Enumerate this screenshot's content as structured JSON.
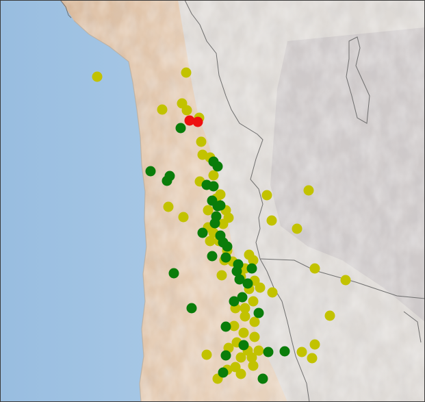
{
  "map": {
    "type": "occurrence-map",
    "colors": {
      "ocean": "#a9c9e6",
      "ocean_coast": "#c7dcef",
      "desert": "#e2c7ac",
      "highland": "#dcdcdc",
      "altiplano": "#d1cccc",
      "border": "#6e6e6e",
      "marker_green": "#0a7d0a",
      "marker_yellow": "#c2c200",
      "marker_red": "#ee1010"
    },
    "marker_categories": [
      "green",
      "yellow",
      "red"
    ]
  }
}
